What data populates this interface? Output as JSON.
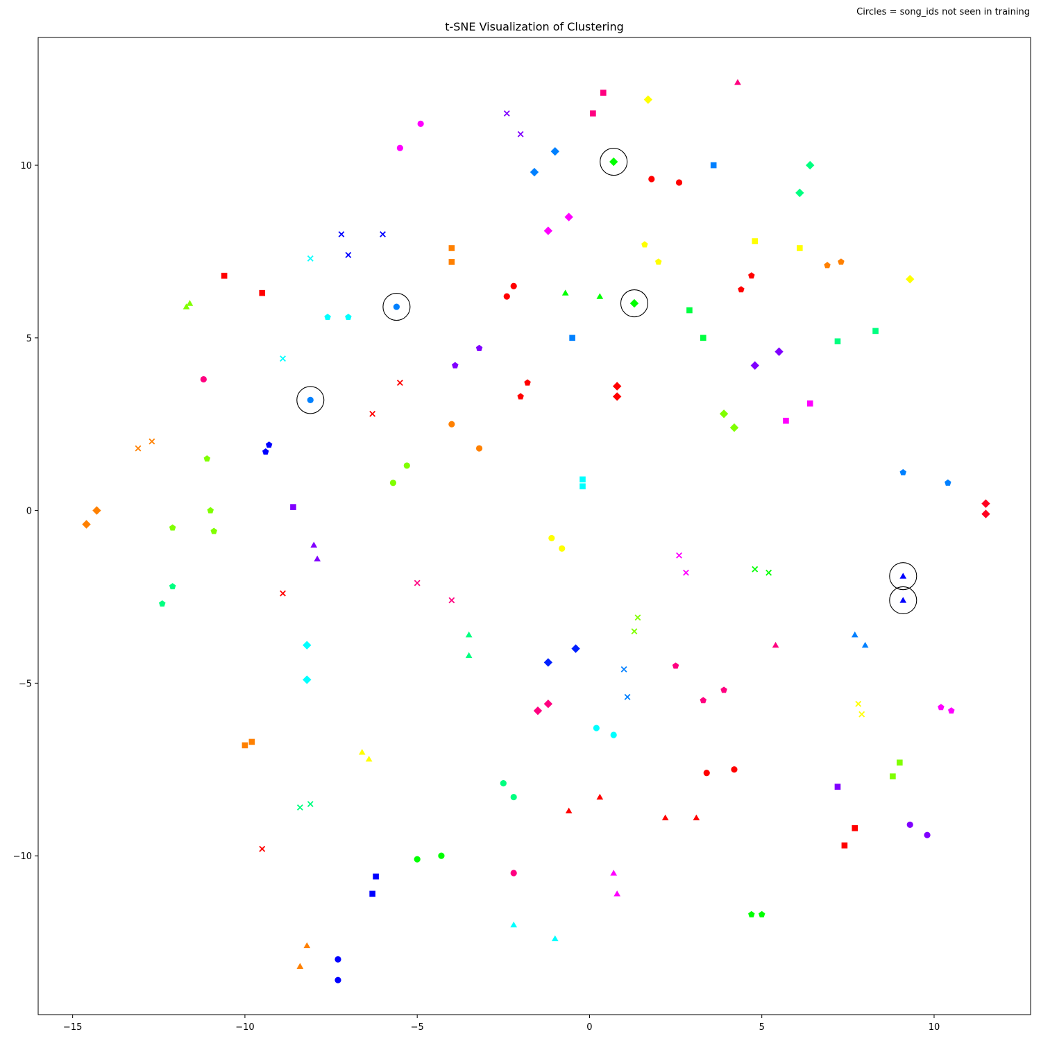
{
  "chart_data": {
    "type": "scatter",
    "title": "t-SNE Visualization of Clustering",
    "annotation": "Circles = song_ids not seen in training",
    "xlabel": "",
    "ylabel": "",
    "xlim": [
      -16,
      12.8
    ],
    "ylim": [
      -14.6,
      13.7
    ],
    "xticks": [
      -15,
      -10,
      -5,
      0,
      5,
      10
    ],
    "yticks": [
      -10,
      -5,
      0,
      5,
      10
    ],
    "xtick_labels": [
      "−15",
      "−10",
      "−5",
      "0",
      "5",
      "10"
    ],
    "ytick_labels": [
      "−10",
      "−5",
      "0",
      "5",
      "10"
    ],
    "grid": false,
    "highlight_ring_color": "#000000",
    "points": [
      {
        "x": 4.3,
        "y": 12.4,
        "marker": "triangle",
        "color": "#ff0080"
      },
      {
        "x": 0.4,
        "y": 12.1,
        "marker": "square",
        "color": "#ff0080"
      },
      {
        "x": 1.7,
        "y": 11.9,
        "marker": "diamond",
        "color": "#ffff00"
      },
      {
        "x": 0.1,
        "y": 11.5,
        "marker": "square",
        "color": "#ff0080"
      },
      {
        "x": -2.4,
        "y": 11.5,
        "marker": "x",
        "color": "#8000ff"
      },
      {
        "x": -2.0,
        "y": 10.9,
        "marker": "x",
        "color": "#8000ff"
      },
      {
        "x": -4.9,
        "y": 11.2,
        "marker": "circle",
        "color": "#ff00ff"
      },
      {
        "x": -5.5,
        "y": 10.5,
        "marker": "circle",
        "color": "#ff00ff"
      },
      {
        "x": -1.0,
        "y": 10.4,
        "marker": "diamond",
        "color": "#0080ff"
      },
      {
        "x": -1.6,
        "y": 9.8,
        "marker": "diamond",
        "color": "#0080ff"
      },
      {
        "x": 0.7,
        "y": 10.1,
        "marker": "diamond",
        "color": "#00ff00",
        "highlight": true
      },
      {
        "x": 1.8,
        "y": 9.6,
        "marker": "circle",
        "color": "#ff0000"
      },
      {
        "x": 2.6,
        "y": 9.5,
        "marker": "circle",
        "color": "#ff0000"
      },
      {
        "x": 3.6,
        "y": 10.0,
        "marker": "square",
        "color": "#0080ff"
      },
      {
        "x": 6.4,
        "y": 10.0,
        "marker": "diamond",
        "color": "#00ff80"
      },
      {
        "x": 6.1,
        "y": 9.2,
        "marker": "diamond",
        "color": "#00ff80"
      },
      {
        "x": -7.2,
        "y": 8.0,
        "marker": "x",
        "color": "#0000ff"
      },
      {
        "x": -6.0,
        "y": 8.0,
        "marker": "x",
        "color": "#0000ff"
      },
      {
        "x": -7.0,
        "y": 7.4,
        "marker": "x",
        "color": "#0000ff"
      },
      {
        "x": -0.6,
        "y": 8.5,
        "marker": "diamond",
        "color": "#ff00ff"
      },
      {
        "x": -1.2,
        "y": 8.1,
        "marker": "diamond",
        "color": "#ff00ff"
      },
      {
        "x": -4.0,
        "y": 7.6,
        "marker": "square",
        "color": "#ff8000"
      },
      {
        "x": -4.0,
        "y": 7.2,
        "marker": "square",
        "color": "#ff8000"
      },
      {
        "x": -8.1,
        "y": 7.3,
        "marker": "x",
        "color": "#00ffff"
      },
      {
        "x": 1.6,
        "y": 7.7,
        "marker": "pentagon",
        "color": "#ffff00"
      },
      {
        "x": 2.0,
        "y": 7.2,
        "marker": "pentagon",
        "color": "#ffff00"
      },
      {
        "x": 4.8,
        "y": 7.8,
        "marker": "square",
        "color": "#ffff00"
      },
      {
        "x": 6.1,
        "y": 7.6,
        "marker": "square",
        "color": "#ffff00"
      },
      {
        "x": 6.9,
        "y": 7.1,
        "marker": "pentagon",
        "color": "#ff8000"
      },
      {
        "x": 7.3,
        "y": 7.2,
        "marker": "pentagon",
        "color": "#ff8000"
      },
      {
        "x": 9.3,
        "y": 6.7,
        "marker": "diamond",
        "color": "#ffff00"
      },
      {
        "x": -10.6,
        "y": 6.8,
        "marker": "square",
        "color": "#ff0000"
      },
      {
        "x": -9.5,
        "y": 6.3,
        "marker": "square",
        "color": "#ff0000"
      },
      {
        "x": -2.2,
        "y": 6.5,
        "marker": "circle",
        "color": "#ff0000"
      },
      {
        "x": -2.4,
        "y": 6.2,
        "marker": "circle",
        "color": "#ff0000"
      },
      {
        "x": -0.7,
        "y": 6.3,
        "marker": "triangle",
        "color": "#00ff00"
      },
      {
        "x": 0.3,
        "y": 6.2,
        "marker": "triangle",
        "color": "#00ff00"
      },
      {
        "x": 1.3,
        "y": 6.0,
        "marker": "diamond",
        "color": "#00ff00",
        "highlight": true
      },
      {
        "x": 4.7,
        "y": 6.8,
        "marker": "pentagon",
        "color": "#ff0000"
      },
      {
        "x": 4.4,
        "y": 6.4,
        "marker": "pentagon",
        "color": "#ff0000"
      },
      {
        "x": -11.7,
        "y": 5.9,
        "marker": "triangle",
        "color": "#80ff00"
      },
      {
        "x": -11.6,
        "y": 6.0,
        "marker": "triangle",
        "color": "#80ff00"
      },
      {
        "x": -5.6,
        "y": 5.9,
        "marker": "circle",
        "color": "#0080ff",
        "highlight": true
      },
      {
        "x": -7.6,
        "y": 5.6,
        "marker": "pentagon",
        "color": "#00ffff"
      },
      {
        "x": -7.0,
        "y": 5.6,
        "marker": "pentagon",
        "color": "#00ffff"
      },
      {
        "x": 2.9,
        "y": 5.8,
        "marker": "square",
        "color": "#00ff40"
      },
      {
        "x": 3.3,
        "y": 5.0,
        "marker": "square",
        "color": "#00ff40"
      },
      {
        "x": 7.2,
        "y": 4.9,
        "marker": "square",
        "color": "#00ff80"
      },
      {
        "x": 8.3,
        "y": 5.2,
        "marker": "square",
        "color": "#00ff80"
      },
      {
        "x": -0.5,
        "y": 5.0,
        "marker": "square",
        "color": "#0080ff"
      },
      {
        "x": -3.2,
        "y": 4.7,
        "marker": "pentagon",
        "color": "#8000ff"
      },
      {
        "x": -3.9,
        "y": 4.2,
        "marker": "pentagon",
        "color": "#8000ff"
      },
      {
        "x": -8.9,
        "y": 4.4,
        "marker": "x",
        "color": "#00ffff"
      },
      {
        "x": 5.5,
        "y": 4.6,
        "marker": "diamond",
        "color": "#8000ff"
      },
      {
        "x": 4.8,
        "y": 4.2,
        "marker": "diamond",
        "color": "#8000ff"
      },
      {
        "x": -11.2,
        "y": 3.8,
        "marker": "circle",
        "color": "#ff0080"
      },
      {
        "x": -5.5,
        "y": 3.7,
        "marker": "x",
        "color": "#ff0000"
      },
      {
        "x": -1.8,
        "y": 3.7,
        "marker": "pentagon",
        "color": "#ff0000"
      },
      {
        "x": -2.0,
        "y": 3.3,
        "marker": "pentagon",
        "color": "#ff0000"
      },
      {
        "x": 0.8,
        "y": 3.6,
        "marker": "diamond",
        "color": "#ff0000"
      },
      {
        "x": 0.8,
        "y": 3.3,
        "marker": "diamond",
        "color": "#ff0000"
      },
      {
        "x": -8.1,
        "y": 3.2,
        "marker": "circle",
        "color": "#0080ff",
        "highlight": true
      },
      {
        "x": 6.4,
        "y": 3.1,
        "marker": "square",
        "color": "#ff00ff"
      },
      {
        "x": 5.7,
        "y": 2.6,
        "marker": "square",
        "color": "#ff00ff"
      },
      {
        "x": 3.9,
        "y": 2.8,
        "marker": "diamond",
        "color": "#80ff00"
      },
      {
        "x": 4.2,
        "y": 2.4,
        "marker": "diamond",
        "color": "#80ff00"
      },
      {
        "x": -6.3,
        "y": 2.8,
        "marker": "x",
        "color": "#ff0000"
      },
      {
        "x": -4.0,
        "y": 2.5,
        "marker": "circle",
        "color": "#ff8000"
      },
      {
        "x": -3.2,
        "y": 1.8,
        "marker": "circle",
        "color": "#ff8000"
      },
      {
        "x": -12.7,
        "y": 2.0,
        "marker": "x",
        "color": "#ff8000"
      },
      {
        "x": -13.1,
        "y": 1.8,
        "marker": "x",
        "color": "#ff8000"
      },
      {
        "x": -9.3,
        "y": 1.9,
        "marker": "pentagon",
        "color": "#0000ff"
      },
      {
        "x": -9.4,
        "y": 1.7,
        "marker": "pentagon",
        "color": "#0000ff"
      },
      {
        "x": -11.1,
        "y": 1.5,
        "marker": "pentagon",
        "color": "#80ff00"
      },
      {
        "x": -5.3,
        "y": 1.3,
        "marker": "circle",
        "color": "#80ff00"
      },
      {
        "x": -5.7,
        "y": 0.8,
        "marker": "circle",
        "color": "#80ff00"
      },
      {
        "x": 9.1,
        "y": 1.1,
        "marker": "pentagon",
        "color": "#0080ff"
      },
      {
        "x": 10.4,
        "y": 0.8,
        "marker": "pentagon",
        "color": "#0080ff"
      },
      {
        "x": -0.2,
        "y": 0.9,
        "marker": "square",
        "color": "#00ffff"
      },
      {
        "x": -0.2,
        "y": 0.7,
        "marker": "square",
        "color": "#00ffff"
      },
      {
        "x": -8.6,
        "y": 0.1,
        "marker": "square",
        "color": "#8000ff"
      },
      {
        "x": -11.0,
        "y": 0.0,
        "marker": "pentagon",
        "color": "#80ff00"
      },
      {
        "x": -14.3,
        "y": 0.0,
        "marker": "diamond",
        "color": "#ff8000"
      },
      {
        "x": -14.6,
        "y": -0.4,
        "marker": "diamond",
        "color": "#ff8000"
      },
      {
        "x": -12.1,
        "y": -0.5,
        "marker": "pentagon",
        "color": "#80ff00"
      },
      {
        "x": -10.9,
        "y": -0.6,
        "marker": "pentagon",
        "color": "#80ff00"
      },
      {
        "x": 11.5,
        "y": 0.2,
        "marker": "diamond",
        "color": "#ff0020"
      },
      {
        "x": 11.5,
        "y": -0.1,
        "marker": "diamond",
        "color": "#ff0020"
      },
      {
        "x": -1.1,
        "y": -0.8,
        "marker": "circle",
        "color": "#ffff00"
      },
      {
        "x": -0.8,
        "y": -1.1,
        "marker": "circle",
        "color": "#ffff00"
      },
      {
        "x": -8.0,
        "y": -1.0,
        "marker": "triangle",
        "color": "#8000ff"
      },
      {
        "x": -7.9,
        "y": -1.4,
        "marker": "triangle",
        "color": "#8000ff"
      },
      {
        "x": 2.6,
        "y": -1.3,
        "marker": "x",
        "color": "#ff00ff"
      },
      {
        "x": 2.8,
        "y": -1.8,
        "marker": "x",
        "color": "#ff00ff"
      },
      {
        "x": 4.8,
        "y": -1.7,
        "marker": "x",
        "color": "#00ff00"
      },
      {
        "x": 5.2,
        "y": -1.8,
        "marker": "x",
        "color": "#00ff00"
      },
      {
        "x": 9.1,
        "y": -1.9,
        "marker": "triangle",
        "color": "#0000ff",
        "highlight": true
      },
      {
        "x": 9.1,
        "y": -2.6,
        "marker": "triangle",
        "color": "#0000ff",
        "highlight": true
      },
      {
        "x": -5.0,
        "y": -2.1,
        "marker": "x",
        "color": "#ff0080"
      },
      {
        "x": -4.0,
        "y": -2.6,
        "marker": "x",
        "color": "#ff0080"
      },
      {
        "x": -12.1,
        "y": -2.2,
        "marker": "pentagon",
        "color": "#00ff80"
      },
      {
        "x": -12.4,
        "y": -2.7,
        "marker": "pentagon",
        "color": "#00ff80"
      },
      {
        "x": -8.9,
        "y": -2.4,
        "marker": "x",
        "color": "#ff0000"
      },
      {
        "x": 1.4,
        "y": -3.1,
        "marker": "x",
        "color": "#80ff00"
      },
      {
        "x": 1.3,
        "y": -3.5,
        "marker": "x",
        "color": "#80ff00"
      },
      {
        "x": -3.5,
        "y": -3.6,
        "marker": "triangle",
        "color": "#00ff80"
      },
      {
        "x": -3.5,
        "y": -4.2,
        "marker": "triangle",
        "color": "#00ff80"
      },
      {
        "x": 7.7,
        "y": -3.6,
        "marker": "triangle",
        "color": "#0080ff"
      },
      {
        "x": 8.0,
        "y": -3.9,
        "marker": "triangle",
        "color": "#0080ff"
      },
      {
        "x": 5.4,
        "y": -3.9,
        "marker": "triangle",
        "color": "#ff0080"
      },
      {
        "x": -8.2,
        "y": -3.9,
        "marker": "diamond",
        "color": "#00ffff"
      },
      {
        "x": -8.2,
        "y": -4.9,
        "marker": "diamond",
        "color": "#00ffff"
      },
      {
        "x": -0.4,
        "y": -4.0,
        "marker": "diamond",
        "color": "#0020ff"
      },
      {
        "x": -1.2,
        "y": -4.4,
        "marker": "diamond",
        "color": "#0020ff"
      },
      {
        "x": 1.0,
        "y": -4.6,
        "marker": "x",
        "color": "#0080ff"
      },
      {
        "x": 1.1,
        "y": -5.4,
        "marker": "x",
        "color": "#0080ff"
      },
      {
        "x": 2.5,
        "y": -4.5,
        "marker": "pentagon",
        "color": "#ff0080"
      },
      {
        "x": 3.9,
        "y": -5.2,
        "marker": "pentagon",
        "color": "#ff0080"
      },
      {
        "x": 3.3,
        "y": -5.5,
        "marker": "pentagon",
        "color": "#ff0080"
      },
      {
        "x": 7.8,
        "y": -5.6,
        "marker": "x",
        "color": "#ffff00"
      },
      {
        "x": 7.9,
        "y": -5.9,
        "marker": "x",
        "color": "#ffff00"
      },
      {
        "x": -1.2,
        "y": -5.6,
        "marker": "diamond",
        "color": "#ff0080"
      },
      {
        "x": -1.5,
        "y": -5.8,
        "marker": "diamond",
        "color": "#ff0080"
      },
      {
        "x": 10.2,
        "y": -5.7,
        "marker": "pentagon",
        "color": "#ff00ff"
      },
      {
        "x": 10.5,
        "y": -5.8,
        "marker": "pentagon",
        "color": "#ff00ff"
      },
      {
        "x": 0.2,
        "y": -6.3,
        "marker": "circle",
        "color": "#00ffff"
      },
      {
        "x": 0.7,
        "y": -6.5,
        "marker": "circle",
        "color": "#00ffff"
      },
      {
        "x": -9.8,
        "y": -6.7,
        "marker": "square",
        "color": "#ff8000"
      },
      {
        "x": -10.0,
        "y": -6.8,
        "marker": "square",
        "color": "#ff8000"
      },
      {
        "x": -6.6,
        "y": -7.0,
        "marker": "triangle",
        "color": "#ffff00"
      },
      {
        "x": -6.4,
        "y": -7.2,
        "marker": "triangle",
        "color": "#ffff00"
      },
      {
        "x": 9.0,
        "y": -7.3,
        "marker": "square",
        "color": "#80ff00"
      },
      {
        "x": 8.8,
        "y": -7.7,
        "marker": "square",
        "color": "#80ff00"
      },
      {
        "x": 3.4,
        "y": -7.6,
        "marker": "circle",
        "color": "#ff0000"
      },
      {
        "x": 4.2,
        "y": -7.5,
        "marker": "circle",
        "color": "#ff0000"
      },
      {
        "x": -2.5,
        "y": -7.9,
        "marker": "circle",
        "color": "#00ff80"
      },
      {
        "x": -2.2,
        "y": -8.3,
        "marker": "circle",
        "color": "#00ff80"
      },
      {
        "x": 7.2,
        "y": -8.0,
        "marker": "square",
        "color": "#8000ff"
      },
      {
        "x": 0.3,
        "y": -8.3,
        "marker": "triangle",
        "color": "#ff0000"
      },
      {
        "x": -0.6,
        "y": -8.7,
        "marker": "triangle",
        "color": "#ff0000"
      },
      {
        "x": 2.2,
        "y": -8.9,
        "marker": "triangle",
        "color": "#ff0000"
      },
      {
        "x": 3.1,
        "y": -8.9,
        "marker": "triangle",
        "color": "#ff0000"
      },
      {
        "x": -8.1,
        "y": -8.5,
        "marker": "x",
        "color": "#00ff80"
      },
      {
        "x": -8.4,
        "y": -8.6,
        "marker": "x",
        "color": "#00ff80"
      },
      {
        "x": 9.3,
        "y": -9.1,
        "marker": "circle",
        "color": "#8000ff"
      },
      {
        "x": 9.8,
        "y": -9.4,
        "marker": "circle",
        "color": "#8000ff"
      },
      {
        "x": 7.7,
        "y": -9.2,
        "marker": "square",
        "color": "#ff0000"
      },
      {
        "x": 7.4,
        "y": -9.7,
        "marker": "square",
        "color": "#ff0000"
      },
      {
        "x": -9.5,
        "y": -9.8,
        "marker": "x",
        "color": "#ff0000"
      },
      {
        "x": -4.3,
        "y": -10.0,
        "marker": "circle",
        "color": "#00ff00"
      },
      {
        "x": -5.0,
        "y": -10.1,
        "marker": "circle",
        "color": "#00ff00"
      },
      {
        "x": -6.2,
        "y": -10.6,
        "marker": "square",
        "color": "#0000ff"
      },
      {
        "x": -6.3,
        "y": -11.1,
        "marker": "square",
        "color": "#0000ff"
      },
      {
        "x": -2.2,
        "y": -10.5,
        "marker": "circle",
        "color": "#ff0080"
      },
      {
        "x": 0.7,
        "y": -10.5,
        "marker": "triangle",
        "color": "#ff00ff"
      },
      {
        "x": 0.8,
        "y": -11.1,
        "marker": "triangle",
        "color": "#ff00ff"
      },
      {
        "x": 4.7,
        "y": -11.7,
        "marker": "pentagon",
        "color": "#00ff00"
      },
      {
        "x": 5.0,
        "y": -11.7,
        "marker": "pentagon",
        "color": "#00ff00"
      },
      {
        "x": -2.2,
        "y": -12.0,
        "marker": "triangle",
        "color": "#00ffff"
      },
      {
        "x": -1.0,
        "y": -12.4,
        "marker": "triangle",
        "color": "#00ffff"
      },
      {
        "x": -8.2,
        "y": -12.6,
        "marker": "triangle",
        "color": "#ff8000"
      },
      {
        "x": -8.4,
        "y": -13.2,
        "marker": "triangle",
        "color": "#ff8000"
      },
      {
        "x": -7.3,
        "y": -13.0,
        "marker": "circle",
        "color": "#0000ff"
      },
      {
        "x": -7.3,
        "y": -13.6,
        "marker": "circle",
        "color": "#0000ff"
      }
    ]
  }
}
